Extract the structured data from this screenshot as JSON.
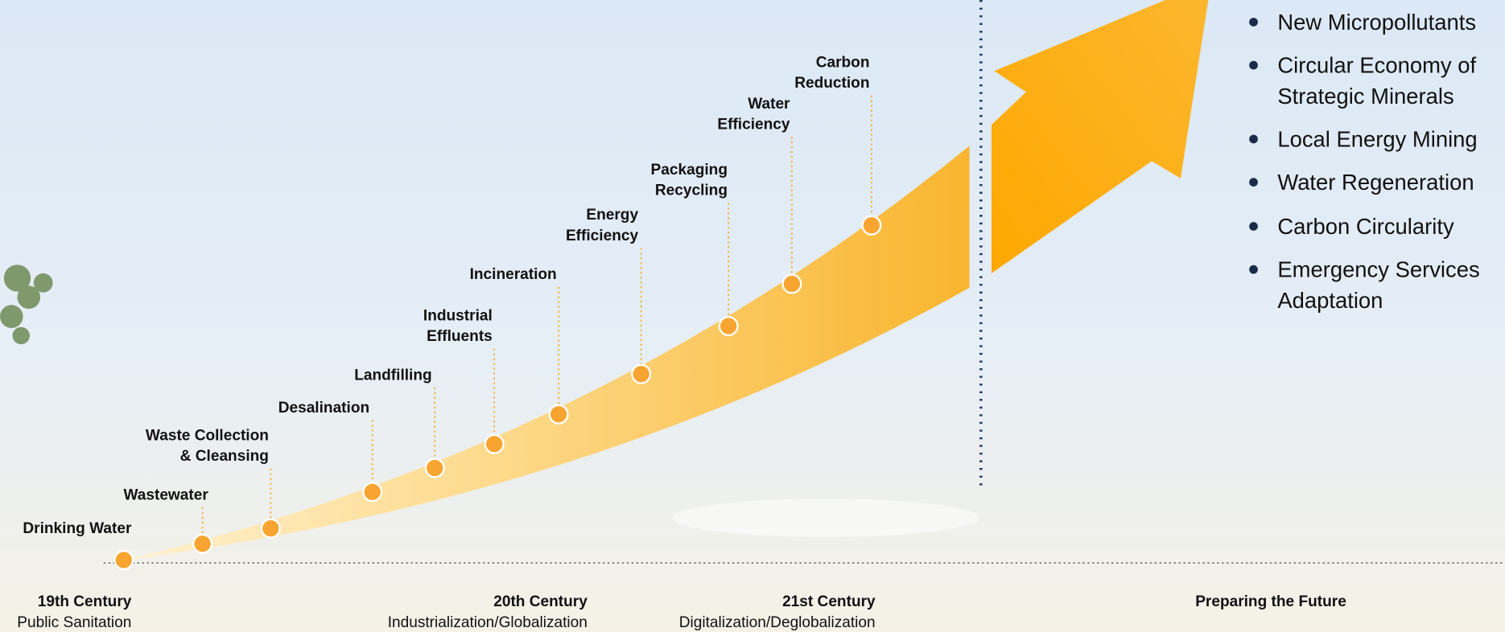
{
  "milestones": [
    {
      "lines": [
        "Drinking Water"
      ]
    },
    {
      "lines": [
        "Wastewater"
      ]
    },
    {
      "lines": [
        "Waste Collection",
        "& Cleansing"
      ]
    },
    {
      "lines": [
        "Desalination"
      ]
    },
    {
      "lines": [
        "Landfilling"
      ]
    },
    {
      "lines": [
        "Industrial",
        "Effluents"
      ]
    },
    {
      "lines": [
        "Incineration"
      ]
    },
    {
      "lines": [
        "Energy",
        "Efficiency"
      ]
    },
    {
      "lines": [
        "Packaging",
        "Recycling"
      ]
    },
    {
      "lines": [
        "Water",
        "Efficiency"
      ]
    },
    {
      "lines": [
        "Carbon",
        "Reduction"
      ]
    }
  ],
  "eras": [
    {
      "title": "19th Century",
      "subtitle": "Public Sanitation"
    },
    {
      "title": "20th Century",
      "subtitle": "Industrialization/Globalization"
    },
    {
      "title": "21st Century",
      "subtitle": "Digitalization/Deglobalization"
    },
    {
      "title": "Preparing the Future"
    }
  ],
  "future_items": [
    {
      "lines": [
        "New Micropollutants"
      ]
    },
    {
      "lines": [
        "Circular Economy of",
        "Strategic Minerals"
      ]
    },
    {
      "lines": [
        "Local Energy Mining"
      ]
    },
    {
      "lines": [
        "Water Regeneration"
      ]
    },
    {
      "lines": [
        "Carbon Circularity"
      ]
    },
    {
      "lines": [
        "Emergency Services",
        "Adaptation"
      ]
    }
  ]
}
